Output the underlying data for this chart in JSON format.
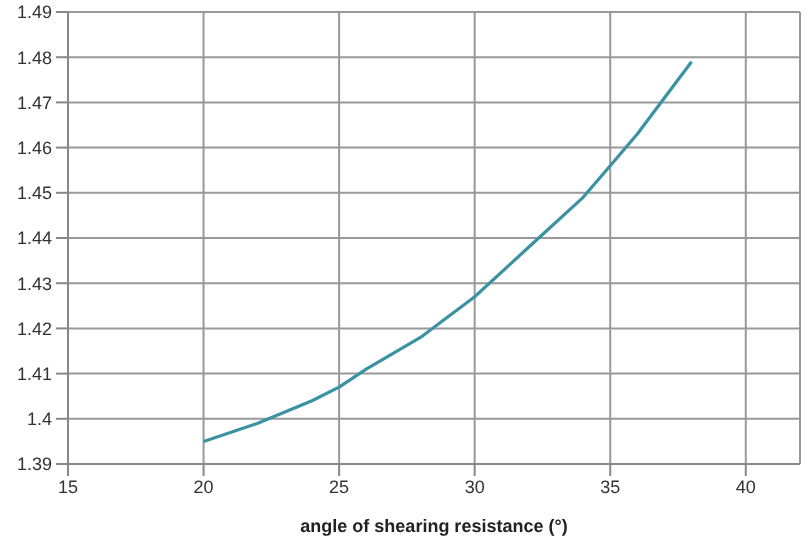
{
  "chart_data": {
    "type": "line",
    "xlabel": "angle of shearing resistance (°)",
    "series": [
      {
        "color": "#3a92a3",
        "x": [
          20,
          22,
          24,
          25,
          26,
          28,
          30,
          32,
          34,
          35,
          36,
          38
        ],
        "values": [
          1.395,
          1.399,
          1.404,
          1.407,
          1.411,
          1.418,
          1.427,
          1.438,
          1.449,
          1.456,
          1.463,
          1.479
        ]
      }
    ],
    "xlim": [
      15,
      42
    ],
    "xticks": [
      15,
      20,
      25,
      30,
      35,
      40
    ],
    "ylim": [
      1.39,
      1.49
    ],
    "yticks": [
      1.39,
      1.4,
      1.41,
      1.42,
      1.43,
      1.44,
      1.45,
      1.46,
      1.47,
      1.48,
      1.49
    ],
    "grid": true,
    "marker": "none",
    "line_style": "solid"
  }
}
